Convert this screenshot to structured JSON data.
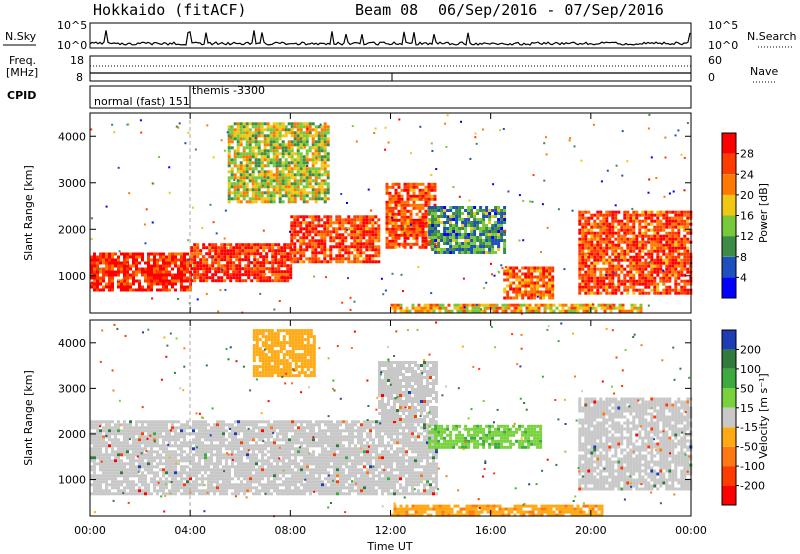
{
  "header": {
    "title": "Hokkaido (fitACF)",
    "beam": "Beam 08",
    "date_range": "06/Sep/2016 - 07/Sep/2016"
  },
  "top_panels": {
    "nsky_label": "N.Sky",
    "nsky_ticks": [
      "10^5",
      "10^0"
    ],
    "nsearch_label": "N.Search",
    "nsearch_ticks": [
      "10^5",
      "10^0"
    ],
    "freq_label_1": "Freq.",
    "freq_label_2": "[MHz]",
    "freq_ticks": [
      "18",
      "8"
    ],
    "nave_label": "Nave",
    "nave_ticks": [
      "60",
      "0"
    ],
    "cpid_label": "CPID",
    "cpid_entries": [
      {
        "time_hours": 0.0,
        "text": "normal (fast)  151"
      },
      {
        "time_hours": 4.15,
        "text": "themis -3300"
      }
    ]
  },
  "chart_data": [
    {
      "type": "heatmap",
      "name": "power",
      "ylabel": "Slant Range [km]",
      "yticks": [
        "1000",
        "2000",
        "3000",
        "4000"
      ],
      "ylim": [
        200,
        4500
      ],
      "xlim": [
        0,
        24
      ],
      "colorbar": {
        "label": "Power [dB]",
        "ticks": [
          "4",
          "8",
          "12",
          "16",
          "20",
          "24",
          "28"
        ],
        "colors": [
          "#0000ff",
          "#1e4fbe",
          "#3c8c46",
          "#78c83c",
          "#f0c814",
          "#ff7800",
          "#ff3c00",
          "#ff0000"
        ]
      },
      "regions": [
        {
          "t0": 0.0,
          "t1": 4.0,
          "r0": 700,
          "r1": 1500,
          "level": 28
        },
        {
          "t0": 4.0,
          "t1": 8.0,
          "r0": 900,
          "r1": 1700,
          "level": 28
        },
        {
          "t0": 8.0,
          "t1": 11.5,
          "r0": 1300,
          "r1": 2300,
          "level": 26
        },
        {
          "t0": 11.8,
          "t1": 13.8,
          "r0": 1600,
          "r1": 3000,
          "level": 26
        },
        {
          "t0": 5.5,
          "t1": 9.5,
          "r0": 2600,
          "r1": 4300,
          "level": 16
        },
        {
          "t0": 13.5,
          "t1": 16.5,
          "r0": 1500,
          "r1": 2500,
          "level": 10
        },
        {
          "t0": 16.5,
          "t1": 18.5,
          "r0": 500,
          "r1": 1200,
          "level": 24
        },
        {
          "t0": 19.5,
          "t1": 24.0,
          "r0": 600,
          "r1": 2400,
          "level": 26
        },
        {
          "t0": 12.0,
          "t1": 22.0,
          "r0": 250,
          "r1": 400,
          "level": 20
        }
      ]
    },
    {
      "type": "heatmap",
      "name": "velocity",
      "xlabel": "Time UT",
      "ylabel": "Slant Range [km]",
      "xticks": [
        "00:00",
        "04:00",
        "08:00",
        "12:00",
        "16:00",
        "20:00",
        "00:00"
      ],
      "yticks": [
        "1000",
        "2000",
        "3000",
        "4000"
      ],
      "ylim": [
        200,
        4500
      ],
      "xlim": [
        0,
        24
      ],
      "colorbar": {
        "label": "Velocity [m s⁻¹]",
        "ticks": [
          "200",
          "100",
          "50",
          "15",
          "-15",
          "-50",
          "-100",
          "-200"
        ],
        "colors": [
          "#1e3cb4",
          "#2f7a3c",
          "#3caa3c",
          "#78d23c",
          "#c8c8c8",
          "#ffaa14",
          "#ff7814",
          "#ff3c00",
          "#ff0000"
        ]
      },
      "regions": [
        {
          "t0": 0.0,
          "t1": 13.8,
          "r0": 700,
          "r1": 2300,
          "level": 0
        },
        {
          "t0": 11.5,
          "t1": 13.8,
          "r0": 2300,
          "r1": 3600,
          "level": 0
        },
        {
          "t0": 19.5,
          "t1": 24.0,
          "r0": 800,
          "r1": 2800,
          "level": 0
        },
        {
          "t0": 13.5,
          "t1": 18.0,
          "r0": 1700,
          "r1": 2200,
          "level": 40
        },
        {
          "t0": 12.0,
          "t1": 20.5,
          "r0": 250,
          "r1": 450,
          "level": -40
        },
        {
          "t0": 6.5,
          "t1": 9.0,
          "r0": 3300,
          "r1": 4300,
          "level": -30
        }
      ]
    }
  ]
}
